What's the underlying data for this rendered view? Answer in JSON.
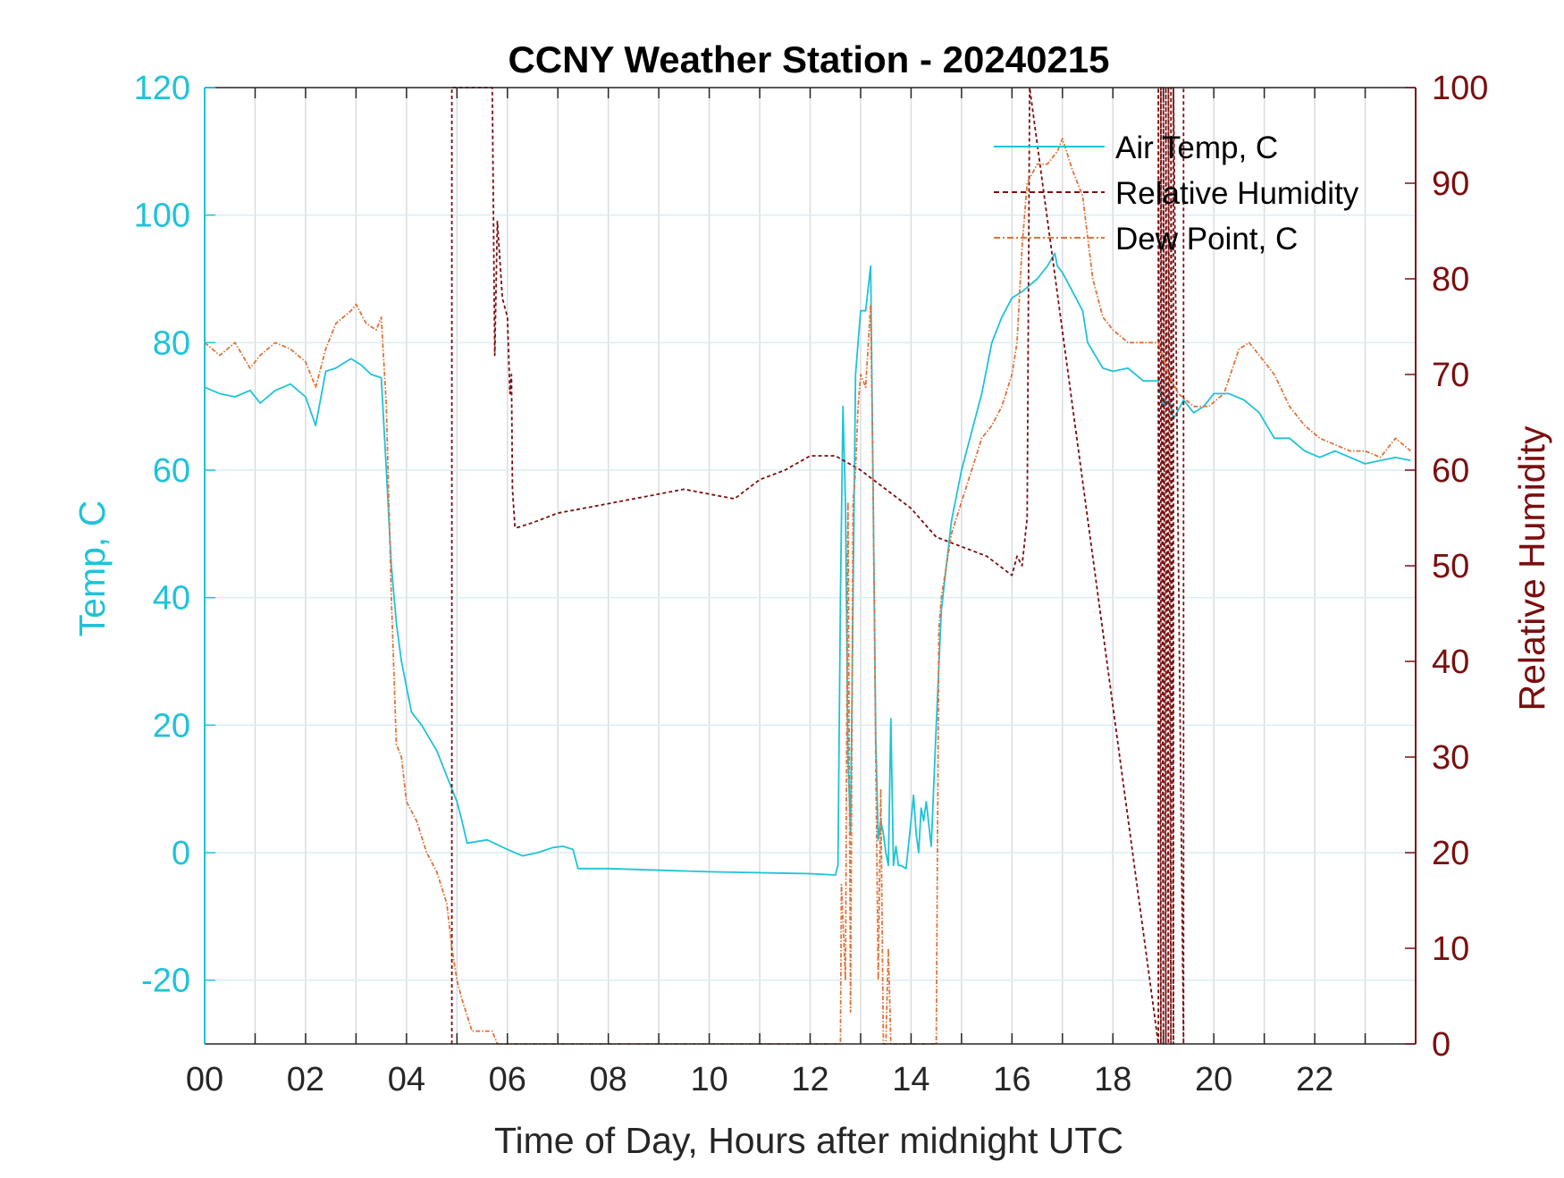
{
  "chart_data": {
    "type": "line",
    "title": "CCNY Weather Station - 20240215",
    "xlabel": "Time of Day, Hours after midnight UTC",
    "ylabel_left": "Temp, C",
    "ylabel_right": "Relative Humidity",
    "xlim": [
      0,
      24
    ],
    "ylim_left": [
      -30,
      120
    ],
    "ylim_right": [
      0,
      100
    ],
    "xticks": [
      0,
      2,
      4,
      6,
      8,
      10,
      12,
      14,
      16,
      18,
      20,
      22
    ],
    "xtick_labels": [
      "00",
      "02",
      "04",
      "06",
      "08",
      "10",
      "12",
      "14",
      "16",
      "18",
      "20",
      "22"
    ],
    "yticks_left": [
      -20,
      0,
      20,
      40,
      60,
      80,
      100,
      120
    ],
    "ytick_labels_left": [
      "-20",
      "0",
      "20",
      "40",
      "60",
      "80",
      "100",
      "120"
    ],
    "yticks_right": [
      0,
      10,
      20,
      30,
      40,
      50,
      60,
      70,
      80,
      90,
      100
    ],
    "ytick_labels_right": [
      "0",
      "10",
      "20",
      "30",
      "40",
      "50",
      "60",
      "70",
      "80",
      "90",
      "100"
    ],
    "grid": true,
    "legend_position": "top-right",
    "colors": {
      "air_temp": "#1fc3d8",
      "relative_humidity": "#7a0f0f",
      "dew_point": "#e0733a",
      "left_axis": "#1fc3d8",
      "right_axis": "#7a0f0f",
      "grid": "#d8dde2",
      "hgrid": "#d8eef4"
    },
    "series": [
      {
        "name": "Air Temp, C",
        "axis": "left",
        "style": "solid",
        "x": [
          0,
          0.3,
          0.6,
          0.9,
          1.1,
          1.4,
          1.7,
          2.0,
          2.2,
          2.4,
          2.6,
          2.9,
          3.1,
          3.3,
          3.5,
          3.6,
          3.7,
          3.8,
          3.9,
          4.1,
          4.3,
          4.6,
          4.8,
          4.9,
          5.0,
          5.1,
          5.2,
          5.6,
          6.0,
          6.3,
          6.6,
          6.9,
          7.1,
          7.3,
          7.4,
          8.0,
          10.0,
          12.0,
          12.5,
          12.55,
          12.6,
          12.65,
          12.7,
          12.75,
          12.8,
          12.85,
          12.9,
          12.95,
          13.0,
          13.1,
          13.2,
          13.25,
          13.3,
          13.35,
          13.4,
          13.45,
          13.5,
          13.55,
          13.6,
          13.65,
          13.7,
          13.75,
          13.8,
          13.9,
          14.0,
          14.05,
          14.1,
          14.15,
          14.2,
          14.25,
          14.3,
          14.4,
          14.5,
          14.6,
          14.7,
          14.8,
          15.0,
          15.2,
          15.4,
          15.6,
          15.8,
          16.0,
          16.2,
          16.5,
          16.7,
          16.85,
          16.9,
          17.0,
          17.2,
          17.4,
          17.5,
          17.8,
          18.0,
          18.3,
          18.6,
          18.9,
          19.0,
          19.1,
          19.2,
          19.4,
          19.6,
          19.8,
          20.0,
          20.3,
          20.6,
          20.9,
          21.2,
          21.5,
          21.8,
          22.1,
          22.4,
          22.7,
          23.0,
          23.3,
          23.6,
          23.9
        ],
        "y": [
          73,
          72,
          71.5,
          72.5,
          70.5,
          72.5,
          73.5,
          71.5,
          67,
          75.5,
          76,
          77.5,
          76.5,
          75,
          74.5,
          60,
          45,
          36,
          30,
          22,
          20,
          16,
          12,
          10,
          8,
          5,
          1.5,
          2,
          0.5,
          -0.5,
          0,
          0.8,
          1,
          0.5,
          -2.5,
          -2.5,
          -3,
          -3.3,
          -3.5,
          -2,
          40,
          70,
          55,
          15,
          3,
          40,
          75,
          80,
          85,
          85,
          92,
          55,
          18,
          2,
          5,
          3,
          0,
          -2,
          21,
          -2,
          1,
          -2,
          -2,
          -2.5,
          5,
          9,
          3,
          0,
          7,
          5,
          8,
          1,
          20,
          38,
          45,
          52,
          60,
          66,
          72,
          80,
          84,
          87,
          88,
          90,
          92,
          94,
          92,
          91,
          88,
          85,
          80,
          76,
          75.5,
          76,
          74,
          74,
          70,
          72,
          68,
          71,
          69,
          70,
          72,
          72,
          71,
          69,
          65,
          65,
          63,
          62,
          63,
          62,
          61,
          61.5,
          62,
          61.5
        ]
      },
      {
        "name": "Relative Humidity",
        "axis": "right",
        "style": "dashed",
        "x": [
          4.9,
          4.9,
          5.7,
          5.75,
          5.8,
          5.85,
          5.9,
          6.0,
          6.05,
          6.08,
          6.1,
          6.15,
          6.2,
          6.5,
          7.0,
          7.5,
          8.0,
          8.5,
          9.0,
          9.5,
          10.0,
          10.5,
          11.0,
          11.5,
          12.0,
          12.5,
          13.0,
          13.5,
          14.0,
          14.5,
          15.0,
          15.5,
          16.0,
          16.1,
          16.2,
          16.3,
          16.35,
          18.9,
          18.9,
          18.95,
          18.95,
          19.0,
          19.0,
          19.05,
          19.05,
          19.1,
          19.1,
          19.15,
          19.15,
          19.2,
          19.2,
          19.4,
          19.4
        ],
        "y": [
          0,
          100,
          100,
          72,
          86,
          82,
          78,
          76,
          68,
          70,
          58,
          54,
          54,
          54.5,
          55.5,
          56,
          56.5,
          57,
          57.5,
          58,
          57.5,
          57,
          59,
          60,
          61.5,
          61.5,
          60,
          58,
          56,
          53,
          52,
          51,
          49,
          51,
          50,
          55,
          100,
          0,
          100,
          0,
          100,
          0,
          100,
          0,
          100,
          0,
          100,
          0,
          100,
          0,
          100,
          0,
          100
        ]
      },
      {
        "name": "Dew Point, C",
        "axis": "left",
        "style": "dashdot",
        "x": [
          0,
          0.3,
          0.6,
          0.9,
          1.1,
          1.4,
          1.7,
          2.0,
          2.2,
          2.4,
          2.6,
          2.9,
          3.0,
          3.2,
          3.4,
          3.5,
          3.6,
          3.7,
          3.8,
          3.9,
          4.0,
          4.2,
          4.4,
          4.6,
          4.8,
          4.9,
          5.0,
          5.1,
          5.3,
          5.5,
          5.7,
          5.8,
          5.85,
          12.6,
          12.62,
          12.7,
          12.75,
          12.8,
          12.85,
          12.9,
          12.95,
          13.0,
          13.1,
          13.2,
          13.25,
          13.3,
          13.35,
          13.4,
          13.45,
          13.5,
          13.55,
          13.6,
          13.65,
          13.7,
          13.75,
          13.8,
          13.85,
          14.5,
          14.55,
          14.6,
          14.7,
          14.8,
          15.0,
          15.2,
          15.4,
          15.6,
          15.8,
          16.0,
          16.1,
          16.2,
          16.3,
          16.5,
          16.7,
          16.9,
          17.0,
          17.2,
          17.4,
          17.6,
          17.8,
          18.0,
          18.3,
          18.6,
          18.9,
          19.1,
          19.3,
          19.6,
          19.9,
          20.2,
          20.5,
          20.7,
          20.9,
          21.2,
          21.5,
          21.8,
          22.1,
          22.4,
          22.7,
          23.0,
          23.3,
          23.6,
          23.9
        ],
        "y": [
          80,
          78,
          80,
          76,
          78,
          80,
          79,
          77,
          73,
          79,
          83,
          85,
          86,
          83,
          82,
          84,
          70,
          40,
          17,
          15,
          8,
          5,
          0,
          -3,
          -8,
          -15,
          -20,
          -23,
          -28,
          -28,
          -28,
          -30,
          -30,
          -30,
          -5,
          -20,
          55,
          -25,
          55,
          60,
          70,
          75,
          73,
          86,
          55,
          15,
          -20,
          10,
          -30,
          -30,
          -15,
          -30,
          -30,
          -30,
          -30,
          -30,
          -30,
          -30,
          35,
          40,
          45,
          50,
          55,
          60,
          65,
          67,
          70,
          75,
          80,
          95,
          105,
          108,
          108,
          110,
          112,
          107,
          103,
          90,
          84,
          82,
          80,
          80,
          80,
          75,
          72,
          70,
          70,
          72,
          79,
          80,
          78,
          75,
          70,
          67,
          65,
          64,
          63,
          63,
          62,
          65,
          63
        ]
      }
    ]
  }
}
